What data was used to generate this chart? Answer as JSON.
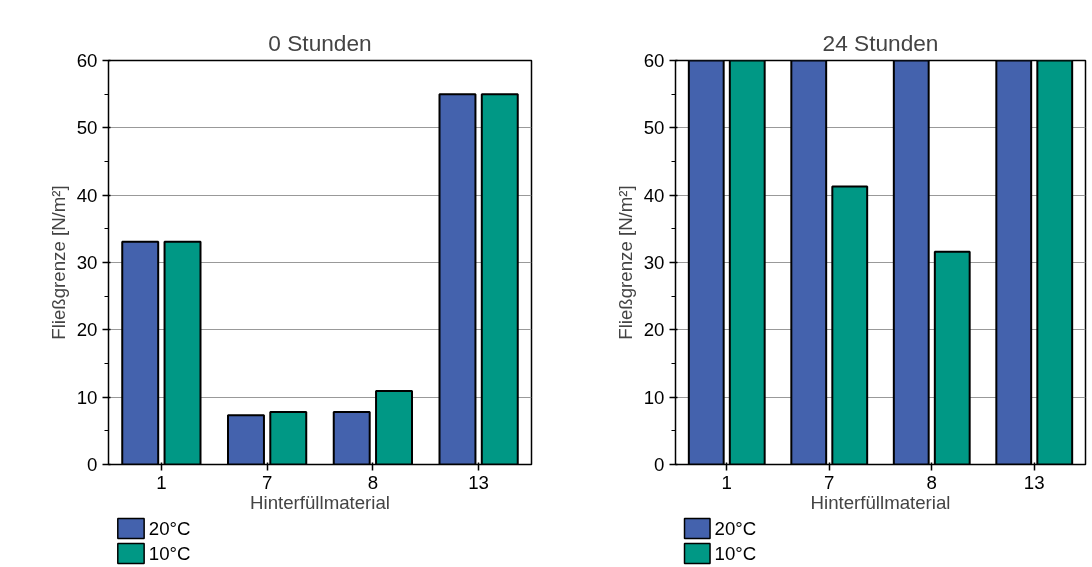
{
  "chart_data": [
    {
      "type": "bar",
      "title": "0 Stunden",
      "xlabel": "Hinterfüllmaterial",
      "ylabel": "Fließgrenze [N/m²]",
      "categories": [
        "1",
        "7",
        "8",
        "13"
      ],
      "series": [
        {
          "name": "20°C",
          "color": "#4462ad",
          "values": [
            33.1,
            7.3,
            7.8,
            55
          ]
        },
        {
          "name": "10°C",
          "color": "#009885",
          "values": [
            33.1,
            7.8,
            10.9,
            55
          ]
        }
      ],
      "ylim": [
        0,
        60
      ],
      "yticks": [
        0,
        10,
        20,
        30,
        40,
        50,
        60
      ],
      "grid": "y",
      "legend": "bottom left"
    },
    {
      "type": "bar",
      "title": "24 Stunden",
      "xlabel": "Hinterfüllmaterial",
      "ylabel": "Fließgrenze [N/m²]",
      "categories": [
        "1",
        "7",
        "8",
        "13"
      ],
      "series": [
        {
          "name": "20°C",
          "color": "#4462ad",
          "values": [
            60,
            60,
            60,
            60
          ]
        },
        {
          "name": "10°C",
          "color": "#009885",
          "values": [
            60,
            41.3,
            31.6,
            60
          ]
        }
      ],
      "ylim": [
        0,
        60
      ],
      "yticks": [
        0,
        10,
        20,
        30,
        40,
        50,
        60
      ],
      "grid": "y",
      "legend": "bottom left"
    }
  ]
}
